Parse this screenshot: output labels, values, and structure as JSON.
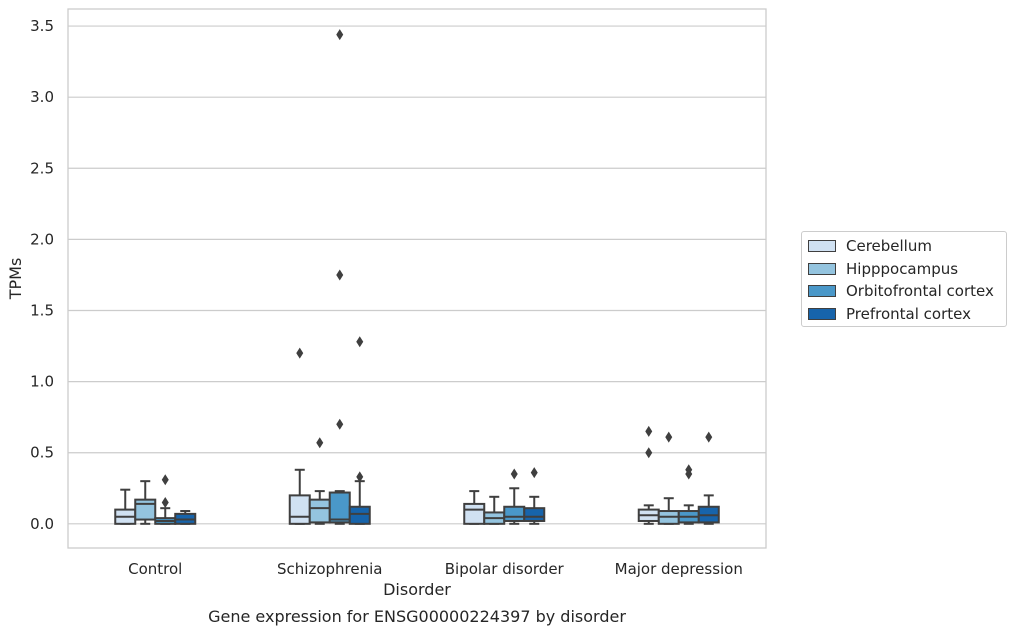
{
  "chart_data": {
    "type": "box",
    "title": "Gene expression for ENSG00000224397 by disorder",
    "xlabel": "Disorder",
    "ylabel": "TPMs",
    "ylim": [
      -0.17,
      3.62
    ],
    "yticks": [
      "0.0",
      "0.5",
      "1.0",
      "1.5",
      "2.0",
      "2.5",
      "3.0",
      "3.5"
    ],
    "ytick_values": [
      0,
      0.5,
      1,
      1.5,
      2,
      2.5,
      3,
      3.5
    ],
    "categories": [
      "Control",
      "Schizophrenia",
      "Bipolar disorder",
      "Major depression"
    ],
    "grid": true,
    "legend_position": "right",
    "series": [
      {
        "name": "Cerebellum",
        "color": "#d0e1f2",
        "boxes": [
          {
            "whislo": 0.0,
            "q1": 0.0,
            "med": 0.05,
            "q3": 0.1,
            "whishi": 0.24,
            "fliers": []
          },
          {
            "whislo": 0.0,
            "q1": 0.0,
            "med": 0.05,
            "q3": 0.2,
            "whishi": 0.38,
            "fliers": [
              1.2
            ]
          },
          {
            "whislo": 0.0,
            "q1": 0.0,
            "med": 0.1,
            "q3": 0.14,
            "whishi": 0.23,
            "fliers": []
          },
          {
            "whislo": 0.0,
            "q1": 0.02,
            "med": 0.06,
            "q3": 0.1,
            "whishi": 0.13,
            "fliers": [
              0.5,
              0.65
            ]
          }
        ]
      },
      {
        "name": "Hipppocampus",
        "color": "#94c4df",
        "boxes": [
          {
            "whislo": 0.0,
            "q1": 0.03,
            "med": 0.14,
            "q3": 0.17,
            "whishi": 0.3,
            "fliers": []
          },
          {
            "whislo": 0.0,
            "q1": 0.01,
            "med": 0.11,
            "q3": 0.17,
            "whishi": 0.23,
            "fliers": [
              0.57
            ]
          },
          {
            "whislo": 0.0,
            "q1": 0.0,
            "med": 0.04,
            "q3": 0.08,
            "whishi": 0.19,
            "fliers": []
          },
          {
            "whislo": 0.0,
            "q1": 0.0,
            "med": 0.05,
            "q3": 0.09,
            "whishi": 0.18,
            "fliers": [
              0.61
            ]
          }
        ]
      },
      {
        "name": "Orbitofrontal cortex",
        "color": "#4a98c9",
        "boxes": [
          {
            "whislo": 0.0,
            "q1": 0.0,
            "med": 0.02,
            "q3": 0.04,
            "whishi": 0.11,
            "fliers": [
              0.15,
              0.31
            ]
          },
          {
            "whislo": 0.0,
            "q1": 0.01,
            "med": 0.03,
            "q3": 0.22,
            "whishi": 0.23,
            "fliers": [
              0.7,
              1.75,
              3.44
            ]
          },
          {
            "whislo": 0.0,
            "q1": 0.02,
            "med": 0.05,
            "q3": 0.12,
            "whishi": 0.25,
            "fliers": [
              0.35
            ]
          },
          {
            "whislo": 0.0,
            "q1": 0.01,
            "med": 0.05,
            "q3": 0.09,
            "whishi": 0.13,
            "fliers": [
              0.35,
              0.38
            ]
          }
        ]
      },
      {
        "name": "Prefrontal cortex",
        "color": "#1764ab",
        "boxes": [
          {
            "whislo": 0.0,
            "q1": 0.0,
            "med": 0.03,
            "q3": 0.07,
            "whishi": 0.09,
            "fliers": []
          },
          {
            "whislo": 0.0,
            "q1": 0.0,
            "med": 0.07,
            "q3": 0.12,
            "whishi": 0.3,
            "fliers": [
              0.33,
              1.28
            ]
          },
          {
            "whislo": 0.0,
            "q1": 0.02,
            "med": 0.05,
            "q3": 0.11,
            "whishi": 0.19,
            "fliers": [
              0.36
            ]
          },
          {
            "whislo": 0.0,
            "q1": 0.01,
            "med": 0.06,
            "q3": 0.12,
            "whishi": 0.2,
            "fliers": [
              0.61
            ]
          }
        ]
      }
    ]
  }
}
